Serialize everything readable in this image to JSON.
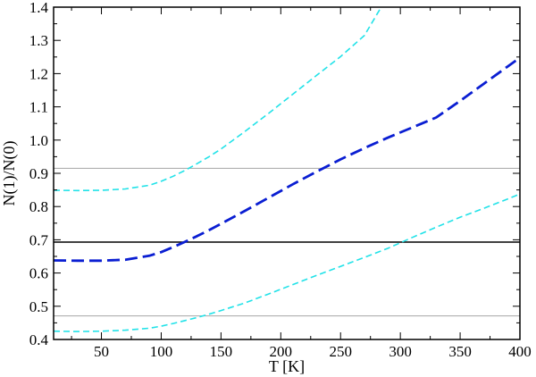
{
  "chart_data": {
    "type": "line",
    "xlabel": "T [K]",
    "ylabel": "N(1)/N(0)",
    "xlim": [
      10,
      400
    ],
    "ylim": [
      0.4,
      1.4
    ],
    "x_ticks": [
      50,
      100,
      150,
      200,
      250,
      300,
      350,
      400
    ],
    "y_ticks": [
      0.4,
      0.5,
      0.6,
      0.7,
      0.8,
      0.9,
      1.0,
      1.1,
      1.2,
      1.3,
      1.4
    ],
    "x_tick_labels": [
      "50",
      "100",
      "150",
      "200",
      "250",
      "300",
      "350",
      "400"
    ],
    "y_tick_labels": [
      "0.4",
      "0.5",
      "0.6",
      "0.7",
      "0.8",
      "0.9",
      "1.0",
      "1.1",
      "1.2",
      "1.3",
      "1.4"
    ],
    "grid": false,
    "horizontal_lines": [
      {
        "y": 0.693,
        "color": "#000000"
      },
      {
        "y": 0.915,
        "color": "#b0b0b0"
      },
      {
        "y": 0.471,
        "color": "#b0b0b0"
      }
    ],
    "series": [
      {
        "color": "#0a1ed2",
        "style": "dashed-thick",
        "x": [
          10,
          30,
          50,
          70,
          90,
          100,
          110,
          120,
          130,
          140,
          150,
          170,
          190,
          210,
          230,
          250,
          270,
          290,
          310,
          330,
          350,
          370,
          390,
          400
        ],
        "y": [
          0.638,
          0.637,
          0.637,
          0.64,
          0.652,
          0.663,
          0.678,
          0.694,
          0.711,
          0.729,
          0.748,
          0.787,
          0.827,
          0.867,
          0.905,
          0.942,
          0.976,
          1.008,
          1.038,
          1.068,
          1.118,
          1.17,
          1.222,
          1.248
        ]
      },
      {
        "color": "#22e2e8",
        "style": "dashed",
        "x": [
          10,
          30,
          50,
          70,
          90,
          100,
          110,
          120,
          130,
          140,
          150,
          170,
          190,
          210,
          230,
          250,
          270,
          284
        ],
        "y": [
          0.849,
          0.848,
          0.849,
          0.853,
          0.864,
          0.876,
          0.891,
          0.909,
          0.929,
          0.95,
          0.973,
          1.026,
          1.081,
          1.138,
          1.195,
          1.251,
          1.315,
          1.4
        ]
      },
      {
        "color": "#22e2e8",
        "style": "dashed",
        "x": [
          10,
          30,
          50,
          70,
          90,
          100,
          110,
          120,
          130,
          140,
          150,
          170,
          190,
          210,
          230,
          250,
          270,
          290,
          310,
          330,
          350,
          370,
          390,
          400
        ],
        "y": [
          0.425,
          0.424,
          0.425,
          0.428,
          0.434,
          0.44,
          0.448,
          0.457,
          0.466,
          0.476,
          0.487,
          0.51,
          0.537,
          0.565,
          0.593,
          0.62,
          0.647,
          0.675,
          0.707,
          0.738,
          0.768,
          0.795,
          0.823,
          0.838
        ]
      }
    ]
  }
}
